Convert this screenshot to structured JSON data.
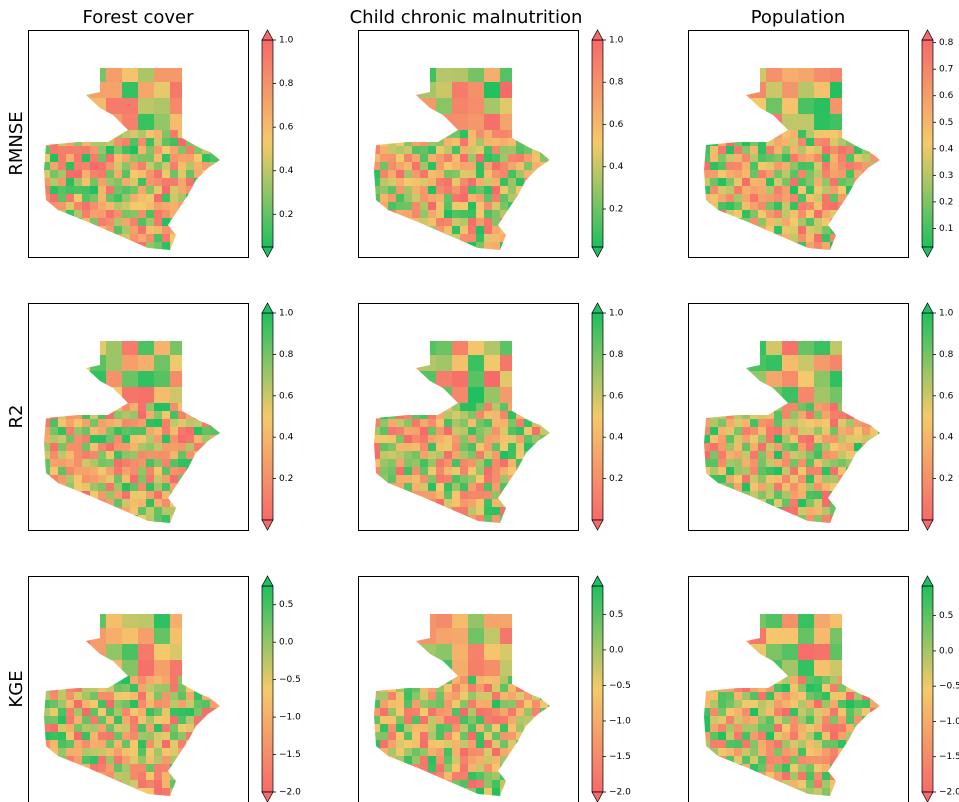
{
  "columns": [
    "Forest cover",
    "Child chronic malnutrition",
    "Population"
  ],
  "rows": [
    {
      "label": "RMNSE",
      "colors": [
        "#1ec060",
        "#f5c96b",
        "#f56a6a"
      ]
    },
    {
      "label": "R2",
      "colors": [
        "#f56a6a",
        "#f5c96b",
        "#1ec060"
      ]
    },
    {
      "label": "KGE",
      "colors": [
        "#f56a6a",
        "#f5c96b",
        "#1ec060"
      ]
    }
  ],
  "panels": [
    [
      {
        "lim": [
          0.05,
          1.0
        ],
        "ticks": [
          0.2,
          0.4,
          0.6,
          0.8,
          {
            "value": 1,
            "label": "1.0"
          }
        ]
      },
      {
        "lim": [
          0.02,
          1.0
        ],
        "ticks": [
          0.2,
          0.4,
          0.6,
          0.8,
          {
            "value": 1,
            "label": "1.0"
          }
        ]
      },
      {
        "lim": [
          0.03,
          0.81
        ],
        "ticks": [
          0.1,
          0.2,
          0.3,
          0.4,
          0.5,
          0.6,
          0.7,
          0.8
        ]
      }
    ],
    [
      {
        "lim": [
          0,
          1.0
        ],
        "ticks": [
          0.2,
          0.4,
          0.6,
          0.8,
          {
            "value": 1,
            "label": "1.0"
          }
        ]
      },
      {
        "lim": [
          0,
          1.0
        ],
        "ticks": [
          0.2,
          0.4,
          0.6,
          0.8,
          {
            "value": 1,
            "label": "1.0"
          }
        ]
      },
      {
        "lim": [
          0,
          1.0
        ],
        "ticks": [
          0.2,
          0.4,
          0.6,
          0.8,
          {
            "value": 1,
            "label": "1.0"
          }
        ]
      }
    ],
    [
      {
        "lim": [
          -2.0,
          0.75
        ],
        "ticks": [
          0.5,
          {
            "value": 0,
            "label": "0.0"
          },
          {
            "value": -0.5,
            "label": "−0.5"
          },
          {
            "value": -1,
            "label": "−1.0"
          },
          {
            "value": -1.5,
            "label": "−1.5"
          },
          {
            "value": -2,
            "label": "−2.0"
          }
        ]
      },
      {
        "lim": [
          -2.0,
          0.9
        ],
        "ticks": [
          0.5,
          {
            "value": 0,
            "label": "0.0"
          },
          {
            "value": -0.5,
            "label": "−0.5"
          },
          {
            "value": -1,
            "label": "−1.0"
          },
          {
            "value": -1.5,
            "label": "−1.5"
          },
          {
            "value": -2,
            "label": "−2.0"
          }
        ]
      },
      {
        "lim": [
          -2.0,
          0.92
        ],
        "ticks": [
          0.5,
          {
            "value": 0,
            "label": "0.0"
          },
          {
            "value": -0.5,
            "label": "−0.5"
          },
          {
            "value": -1,
            "label": "−1.0"
          },
          {
            "value": -1.5,
            "label": "−1.5"
          },
          {
            "value": -2,
            "label": "−2.0"
          }
        ]
      }
    ]
  ]
}
